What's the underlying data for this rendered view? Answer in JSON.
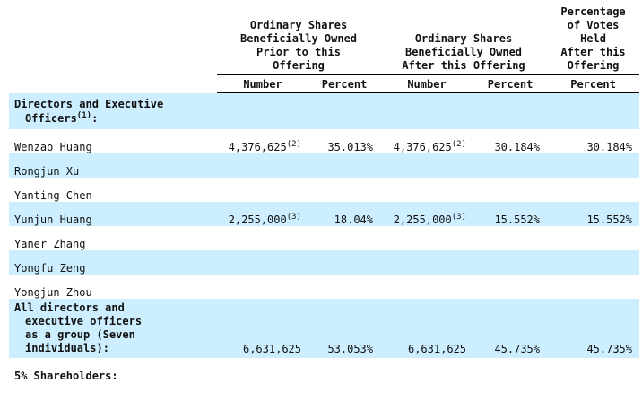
{
  "header": {
    "col1": [
      "Ordinary Shares",
      "Beneficially Owned",
      "Prior to this",
      "Offering"
    ],
    "col2": [
      "Ordinary Shares",
      "Beneficially Owned",
      "After this Offering"
    ],
    "col3": [
      "Percentage",
      "of Votes",
      "Held",
      "After this",
      "Offering"
    ],
    "sub": [
      "Number",
      "Percent",
      "Number",
      "Percent",
      "Percent"
    ]
  },
  "section_directors": {
    "text": "Directors and Executive",
    "text2": "Officers",
    "sup": "(1)",
    "tail": ":"
  },
  "rows": [
    {
      "name": "Wenzao Huang",
      "num1": "4,376,625",
      "sup1": "(2)",
      "pct1": "35.013%",
      "num2": "4,376,625",
      "sup2": "(2)",
      "pct2": "30.184%",
      "votes": "30.184%"
    },
    {
      "name": "Rongjun Xu"
    },
    {
      "name": "Yanting Chen"
    },
    {
      "name": "Yunjun Huang",
      "num1": "2,255,000",
      "sup1": "(3)",
      "pct1": "18.04%",
      "num2": "2,255,000",
      "sup2": "(3)",
      "pct2": "15.552%",
      "votes": "15.552%"
    },
    {
      "name": "Yaner Zhang"
    },
    {
      "name": "Yongfu Zeng"
    },
    {
      "name": "Yongjun Zhou"
    }
  ],
  "group_row": {
    "lines": [
      "All directors and",
      "executive officers",
      "as a group (Seven",
      "individuals):"
    ],
    "num1": "6,631,625",
    "pct1": "53.053%",
    "num2": "6,631,625",
    "pct2": "45.735%",
    "votes": "45.735%"
  },
  "section_shareholders": {
    "text": "5% Shareholders:"
  },
  "colors": {
    "shade": "#cceeff"
  }
}
